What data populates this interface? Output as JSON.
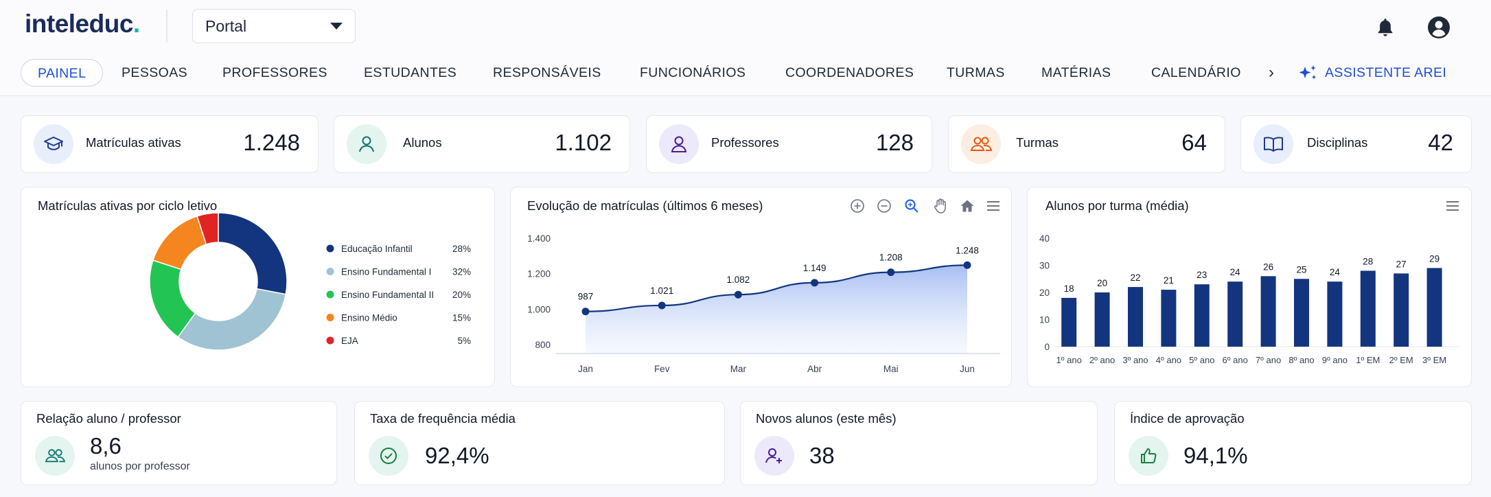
{
  "header": {
    "logo_text": "inteleduc",
    "logo_dot": ".",
    "portal_label": "Portal",
    "icons": [
      "bell-icon",
      "user-circle-icon"
    ]
  },
  "nav": {
    "items": [
      "PAINEL",
      "PESSOAS",
      "PROFESSORES",
      "ESTUDANTES",
      "RESPONSÁVEIS",
      "FUNCIONÁRIOS",
      "COORDENADORES",
      "TURMAS",
      "MATÉRIAS",
      "CALENDÁRIO"
    ],
    "active": "PAINEL",
    "more_icon": "chevron-right-icon",
    "assistant_label": "ASSISTENTE AREI"
  },
  "stats": [
    {
      "label": "Matrículas ativas",
      "value": "1.248",
      "icon": "graduation-cap-icon",
      "color": "#e8eefb"
    },
    {
      "label": "Alunos",
      "value": "1.102",
      "icon": "user-icon",
      "color": "#e4f4ef"
    },
    {
      "label": "Professores",
      "value": "128",
      "icon": "teacher-icon",
      "color": "#ece9fb"
    },
    {
      "label": "Turmas",
      "value": "64",
      "icon": "users-icon",
      "color": "#fdeee3"
    },
    {
      "label": "Disciplinas",
      "value": "42",
      "icon": "book-icon",
      "color": "#e8eefb"
    }
  ],
  "panels": {
    "donut_title": "Matrículas ativas por ciclo letivo",
    "line_title": "Evolução de matrículas (últimos 6 meses)",
    "bar_title": "Alunos por turma (média)"
  },
  "chart_data": [
    {
      "type": "pie",
      "title": "Matrículas ativas por ciclo letivo",
      "categories": [
        "Educação Infantil",
        "Ensino Fundamental I",
        "Ensino Fundamental II",
        "Ensino Médio",
        "EJA"
      ],
      "values": [
        28,
        32,
        20,
        15,
        5
      ],
      "labels": [
        "28%",
        "32%",
        "20%",
        "15%",
        "5%"
      ],
      "colors": [
        "#13357f",
        "#9fc3d3",
        "#22c553",
        "#f5861f",
        "#e02424"
      ],
      "legend": "right"
    },
    {
      "type": "area",
      "title": "Evolução de matrículas (últimos 6 meses)",
      "categories": [
        "Jan",
        "Fev",
        "Mar",
        "Abr",
        "Mai",
        "Jun"
      ],
      "values": [
        987,
        1021,
        1082,
        1149,
        1208,
        1248
      ],
      "labels": [
        "987",
        "1.021",
        "1.082",
        "1.149",
        "1.208",
        "1.248"
      ],
      "yticks": [
        "800",
        "1.000",
        "1.200",
        "1.400"
      ],
      "ytick_values": [
        800,
        1000,
        1200,
        1400
      ],
      "ylim": [
        750,
        1400
      ],
      "color": "#13357f"
    },
    {
      "type": "bar",
      "title": "Alunos por turma (média)",
      "categories": [
        "1º ano",
        "2º ano",
        "3º ano",
        "4º ano",
        "5º ano",
        "6º ano",
        "7º ano",
        "8º ano",
        "9º ano",
        "1º EM",
        "2º EM",
        "3º EM"
      ],
      "values": [
        18,
        20,
        22,
        21,
        23,
        24,
        26,
        25,
        24,
        28,
        27,
        29
      ],
      "yticks": [
        0,
        10,
        20,
        30,
        40
      ],
      "ylim": [
        0,
        40
      ],
      "color": "#13357f"
    }
  ],
  "line_tools": [
    "zoom-in-icon",
    "zoom-out-icon",
    "magnifier-icon",
    "pan-hand-icon",
    "home-icon",
    "menu-icon"
  ],
  "bottom": [
    {
      "title": "Relação aluno / professor",
      "value": "8,6",
      "sub": "alunos por professor",
      "icon": "users-icon",
      "color": "#e4f4ef"
    },
    {
      "title": "Taxa de frequência média",
      "value": "92,4%",
      "icon": "check-circle-icon",
      "color": "#e4f4ef"
    },
    {
      "title": "Novos alunos (este mês)",
      "value": "38",
      "icon": "user-plus-icon",
      "color": "#ece9fb"
    },
    {
      "title": "Índice de aprovação",
      "value": "94,1%",
      "icon": "thumbs-up-icon",
      "color": "#e4f4ef"
    }
  ]
}
